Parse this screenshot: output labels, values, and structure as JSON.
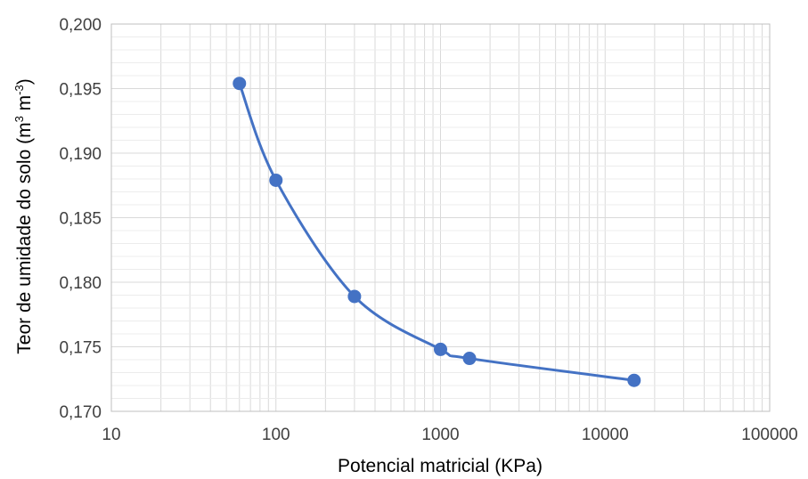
{
  "chart_data": {
    "type": "scatter",
    "title": "",
    "xlabel": "Potencial matricial (KPa)",
    "ylabel": {
      "text": "Teor de umidade do solo (m",
      "sup1": "3",
      "mid": " m",
      "sup2": "-3",
      "end": ")"
    },
    "x_scale": "log",
    "xlim": [
      10,
      100000
    ],
    "ylim": [
      0.17,
      0.2
    ],
    "x_ticks": [
      10,
      100,
      1000,
      10000,
      100000
    ],
    "x_tick_labels": [
      "10",
      "100",
      "1000",
      "10000",
      "100000"
    ],
    "y_ticks": [
      0.17,
      0.175,
      0.18,
      0.185,
      0.19,
      0.195,
      0.2
    ],
    "y_tick_labels": [
      "0,170",
      "0,175",
      "0,180",
      "0,185",
      "0,190",
      "0,195",
      "0,200"
    ],
    "grid": true,
    "line": "smoothed",
    "color": "#4472C4",
    "series": [
      {
        "x": [
          60,
          100,
          300,
          1000,
          1500,
          15000
        ],
        "y": [
          0.1954,
          0.1879,
          0.1789,
          0.1748,
          0.1741,
          0.1724
        ]
      }
    ]
  }
}
